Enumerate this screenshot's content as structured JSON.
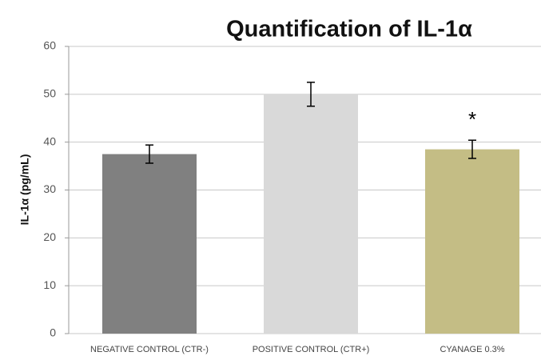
{
  "chart_data": {
    "type": "bar",
    "title": "Quantification of IL-1α",
    "y_label": "IL-1α (pg/mL)",
    "categories": [
      "NEGATIVE CONTROL (CTR-)",
      "POSITIVE CONTROL (CTR+)",
      "CYANAGE 0.3%"
    ],
    "values": [
      37.5,
      50,
      38.5
    ],
    "errors": [
      1.9,
      2.5,
      1.9
    ],
    "colors": [
      "#808080",
      "#d9d9d9",
      "#c4bd85"
    ],
    "annotations": [
      null,
      null,
      "*"
    ],
    "ylim": [
      0,
      60
    ],
    "yticks": [
      0,
      10,
      20,
      30,
      40,
      50,
      60
    ],
    "grid": true
  }
}
